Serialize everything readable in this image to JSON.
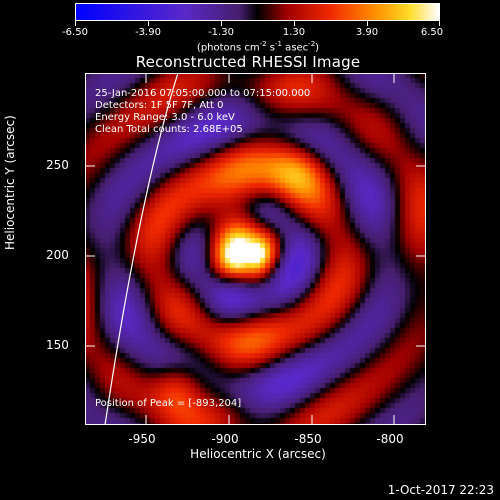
{
  "colorbar": {
    "tick_labels": [
      "-6.50",
      "-3.90",
      "-1.30",
      "1.30",
      "3.90",
      "6.50"
    ],
    "units_text": "(photons cm",
    "units_exp1": "-2",
    "units_mid": " s",
    "units_exp2": "-1",
    "units_mid2": " asec",
    "units_exp3": "-2",
    "units_end": ")"
  },
  "title": "Reconstructed RHESSI Image",
  "annotations": {
    "time_range": "25-Jan-2016 07:05:00.000 to 07:15:00.000",
    "detectors": "Detectors: 1F 5F 7F, Att 0",
    "energy_range": "Energy Range: 3.0 - 6.0 keV",
    "clean_counts": "Clean    Total counts: 2.68E+05",
    "peak_position": "Position of Peak = [-893,204]"
  },
  "axes": {
    "xlabel": "Heliocentric X (arcsec)",
    "ylabel": "Heliocentric Y (arcsec)",
    "xtick_labels": [
      "-950",
      "-900",
      "-850",
      "-800"
    ],
    "ytick_labels": [
      "250",
      "200",
      "150"
    ]
  },
  "footer": {
    "date": "1-Oct-2017 22:23"
  }
}
